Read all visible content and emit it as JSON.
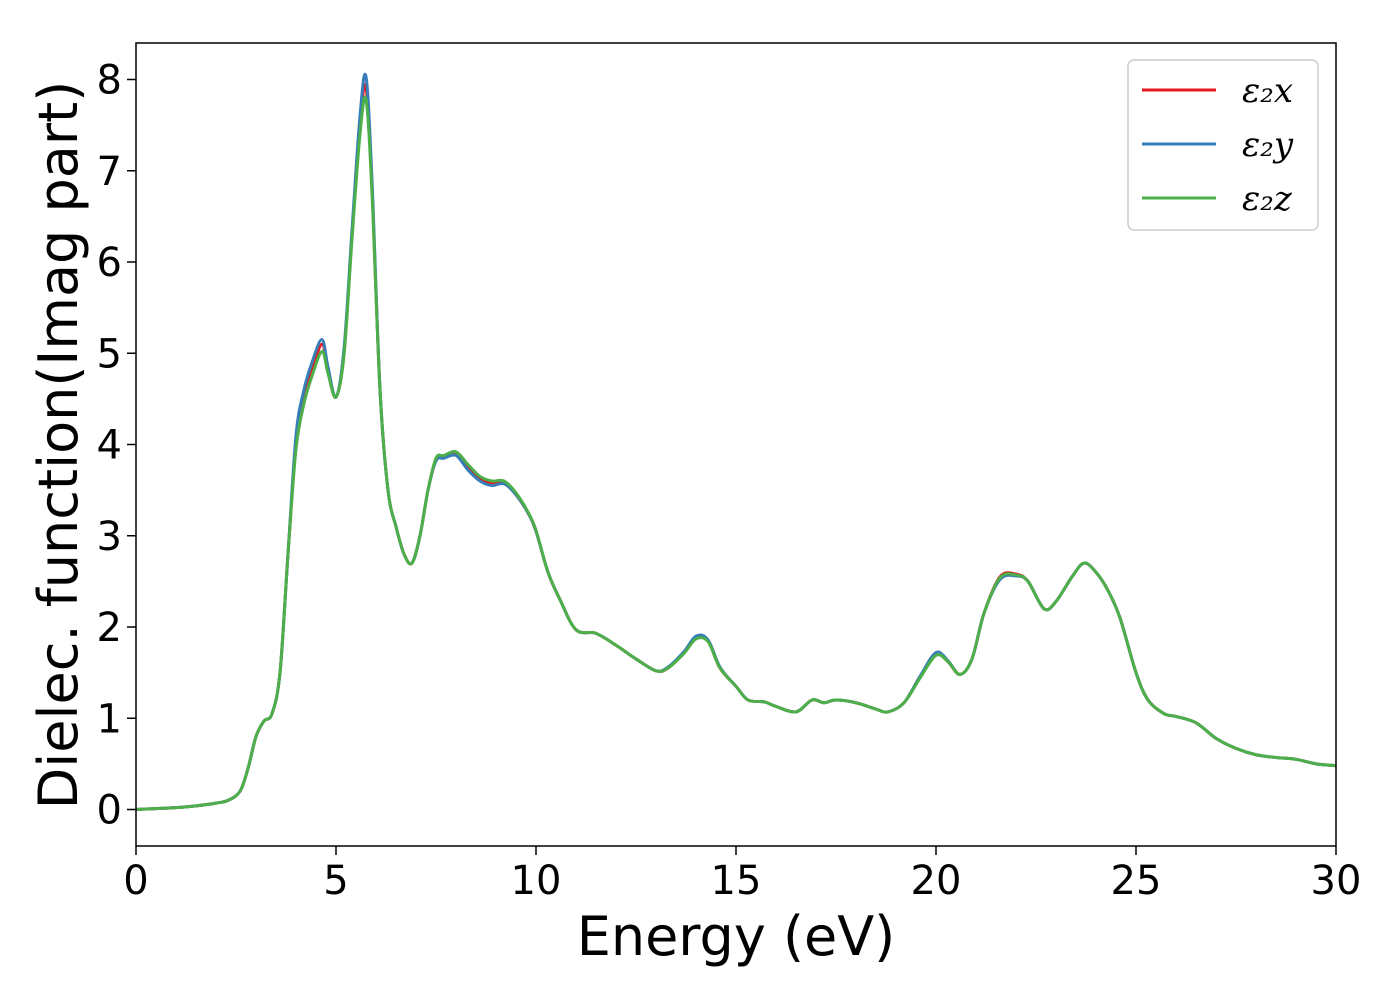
{
  "chart_data": {
    "type": "line",
    "title": "",
    "xlabel": "Energy (eV)",
    "ylabel": "Dielec. function(Imag part)",
    "xlim": [
      0,
      30
    ],
    "ylim": [
      -0.4,
      8.4
    ],
    "xticks": [
      0,
      5,
      10,
      15,
      20,
      25,
      30
    ],
    "yticks": [
      0,
      1,
      2,
      3,
      4,
      5,
      6,
      7,
      8
    ],
    "grid": false,
    "legend_position": "top-right",
    "x": [
      0,
      0.5,
      1.0,
      1.5,
      2.0,
      2.3,
      2.6,
      2.8,
      3.0,
      3.2,
      3.4,
      3.6,
      3.8,
      4.0,
      4.2,
      4.4,
      4.65,
      4.8,
      5.0,
      5.2,
      5.4,
      5.6,
      5.75,
      5.9,
      6.1,
      6.3,
      6.5,
      6.7,
      6.9,
      7.1,
      7.3,
      7.5,
      7.7,
      8.0,
      8.3,
      8.6,
      8.9,
      9.2,
      9.5,
      9.8,
      10.0,
      10.3,
      10.6,
      11.0,
      11.5,
      12.0,
      12.5,
      13.0,
      13.3,
      13.7,
      14.0,
      14.3,
      14.6,
      15.0,
      15.3,
      15.7,
      16.0,
      16.5,
      16.9,
      17.2,
      17.5,
      18.0,
      18.5,
      18.8,
      19.2,
      19.6,
      20.0,
      20.3,
      20.6,
      20.9,
      21.2,
      21.6,
      22.0,
      22.3,
      22.7,
      23.0,
      23.4,
      23.7,
      24.0,
      24.3,
      24.6,
      25.0,
      25.3,
      25.7,
      26.0,
      26.5,
      27.0,
      27.5,
      28.0,
      28.5,
      29.0,
      29.5,
      30.0
    ],
    "series": [
      {
        "name": "ε₂x",
        "color": "#e41a1c",
        "values": [
          0.0,
          0.01,
          0.02,
          0.04,
          0.07,
          0.1,
          0.2,
          0.45,
          0.8,
          0.97,
          1.05,
          1.5,
          2.8,
          4.0,
          4.5,
          4.8,
          5.1,
          4.8,
          4.52,
          5.0,
          6.3,
          7.5,
          7.92,
          6.8,
          4.6,
          3.5,
          3.1,
          2.8,
          2.7,
          3.0,
          3.5,
          3.83,
          3.87,
          3.9,
          3.75,
          3.62,
          3.58,
          3.58,
          3.45,
          3.25,
          3.05,
          2.6,
          2.3,
          1.97,
          1.93,
          1.8,
          1.65,
          1.52,
          1.55,
          1.72,
          1.88,
          1.85,
          1.55,
          1.35,
          1.2,
          1.18,
          1.13,
          1.07,
          1.2,
          1.17,
          1.2,
          1.17,
          1.1,
          1.07,
          1.17,
          1.45,
          1.7,
          1.62,
          1.48,
          1.65,
          2.15,
          2.55,
          2.58,
          2.5,
          2.2,
          2.28,
          2.55,
          2.7,
          2.6,
          2.4,
          2.1,
          1.5,
          1.2,
          1.05,
          1.02,
          0.95,
          0.78,
          0.67,
          0.6,
          0.57,
          0.55,
          0.5,
          0.48
        ]
      },
      {
        "name": "ε₂y",
        "color": "#377eb8",
        "values": [
          0.0,
          0.01,
          0.02,
          0.04,
          0.07,
          0.1,
          0.2,
          0.45,
          0.8,
          0.97,
          1.05,
          1.5,
          2.8,
          4.1,
          4.6,
          4.9,
          5.15,
          4.85,
          4.52,
          5.05,
          6.35,
          7.6,
          8.03,
          6.9,
          4.6,
          3.5,
          3.1,
          2.8,
          2.7,
          3.0,
          3.5,
          3.82,
          3.85,
          3.88,
          3.72,
          3.6,
          3.55,
          3.57,
          3.45,
          3.25,
          3.05,
          2.6,
          2.3,
          1.97,
          1.93,
          1.8,
          1.65,
          1.52,
          1.56,
          1.73,
          1.9,
          1.86,
          1.56,
          1.35,
          1.2,
          1.18,
          1.13,
          1.07,
          1.2,
          1.17,
          1.2,
          1.17,
          1.1,
          1.07,
          1.17,
          1.46,
          1.72,
          1.63,
          1.48,
          1.65,
          2.15,
          2.52,
          2.56,
          2.5,
          2.2,
          2.28,
          2.55,
          2.7,
          2.6,
          2.4,
          2.1,
          1.5,
          1.2,
          1.05,
          1.02,
          0.95,
          0.78,
          0.67,
          0.6,
          0.57,
          0.55,
          0.5,
          0.48
        ]
      },
      {
        "name": "ε₂z",
        "color": "#4daf4a",
        "values": [
          0.0,
          0.01,
          0.02,
          0.04,
          0.07,
          0.1,
          0.2,
          0.45,
          0.8,
          0.97,
          1.05,
          1.5,
          2.8,
          3.95,
          4.45,
          4.75,
          5.02,
          4.78,
          4.52,
          4.98,
          6.25,
          7.4,
          7.78,
          6.75,
          4.6,
          3.5,
          3.1,
          2.8,
          2.7,
          3.0,
          3.5,
          3.85,
          3.88,
          3.92,
          3.78,
          3.65,
          3.6,
          3.6,
          3.47,
          3.26,
          3.06,
          2.6,
          2.3,
          1.97,
          1.93,
          1.8,
          1.65,
          1.52,
          1.55,
          1.71,
          1.87,
          1.84,
          1.55,
          1.35,
          1.2,
          1.18,
          1.13,
          1.07,
          1.2,
          1.17,
          1.2,
          1.17,
          1.1,
          1.07,
          1.17,
          1.44,
          1.69,
          1.62,
          1.48,
          1.65,
          2.15,
          2.54,
          2.57,
          2.5,
          2.2,
          2.28,
          2.55,
          2.7,
          2.6,
          2.4,
          2.1,
          1.5,
          1.2,
          1.05,
          1.02,
          0.95,
          0.78,
          0.67,
          0.6,
          0.57,
          0.55,
          0.5,
          0.48
        ]
      }
    ]
  }
}
